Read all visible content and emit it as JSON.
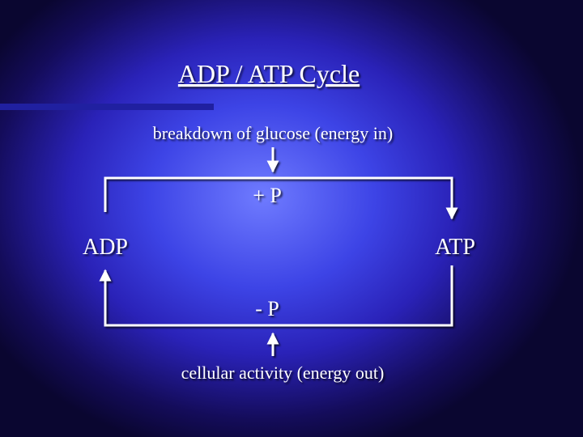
{
  "title": "ADP / ATP Cycle",
  "top_label": "breakdown of glucose (energy in)",
  "plus_label": "+ P",
  "left_node": "ADP",
  "right_node": "ATP",
  "minus_label": "- P",
  "bottom_label": "cellular activity (energy out)"
}
